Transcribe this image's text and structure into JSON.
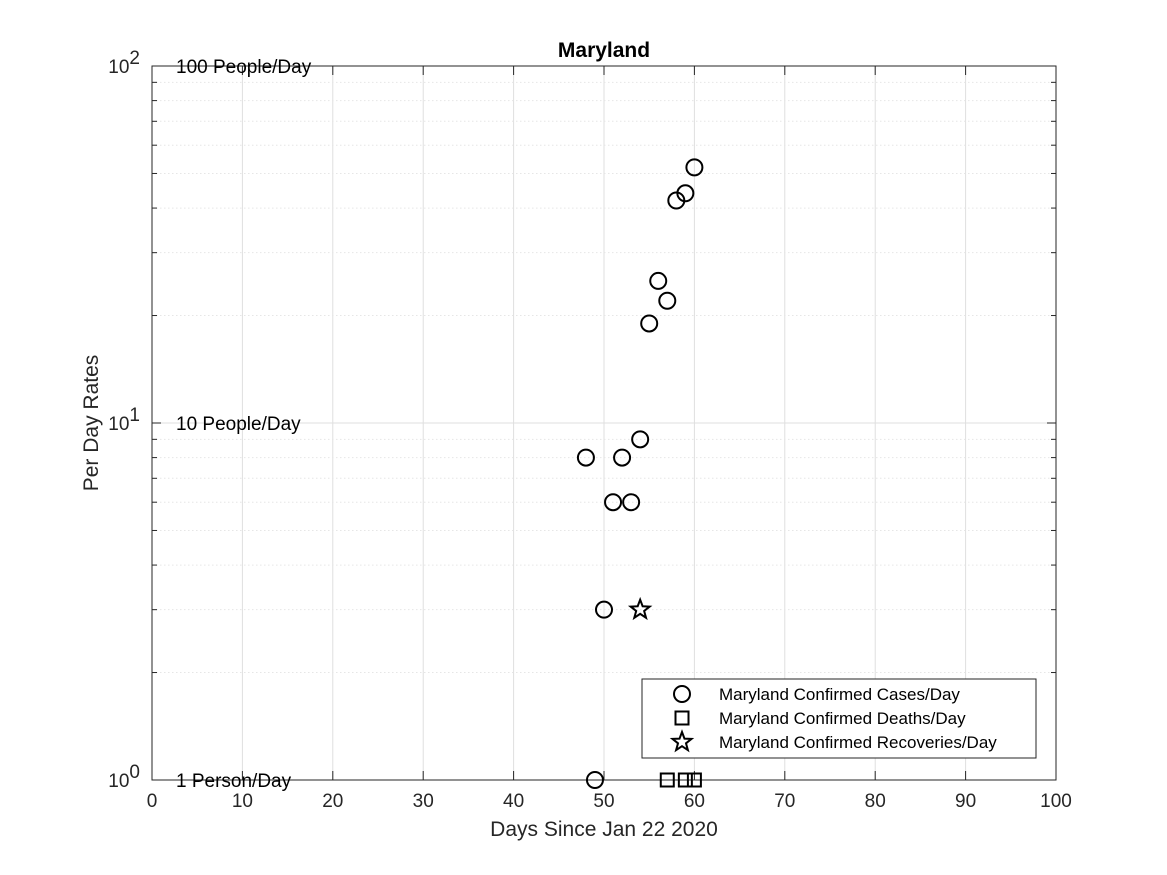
{
  "chart_data": {
    "type": "scatter",
    "title": "Maryland",
    "xlabel": "Days Since Jan 22 2020",
    "ylabel": "Per Day Rates",
    "xlim": [
      0,
      100
    ],
    "ylim": [
      1,
      100
    ],
    "yscale": "log",
    "grid": true,
    "x_ticks": [
      "0",
      "10",
      "20",
      "30",
      "40",
      "50",
      "60",
      "70",
      "80",
      "90",
      "100"
    ],
    "y_ticks": [
      {
        "value": 1,
        "base": "10",
        "exp": "0"
      },
      {
        "value": 10,
        "base": "10",
        "exp": "1"
      },
      {
        "value": 100,
        "base": "10",
        "exp": "2"
      }
    ],
    "annotations": [
      {
        "text": "100 People/Day",
        "y": 100
      },
      {
        "text": "10 People/Day",
        "y": 10
      },
      {
        "text": "1 Person/Day",
        "y": 1
      }
    ],
    "legend_position": "bottom-right",
    "series": [
      {
        "name": "Maryland Confirmed Cases/Day",
        "marker": "circle",
        "points": [
          {
            "x": 48,
            "y": 8
          },
          {
            "x": 49,
            "y": 1
          },
          {
            "x": 50,
            "y": 3
          },
          {
            "x": 51,
            "y": 6
          },
          {
            "x": 52,
            "y": 8
          },
          {
            "x": 53,
            "y": 6
          },
          {
            "x": 54,
            "y": 9
          },
          {
            "x": 55,
            "y": 19
          },
          {
            "x": 56,
            "y": 25
          },
          {
            "x": 57,
            "y": 22
          },
          {
            "x": 58,
            "y": 42
          },
          {
            "x": 59,
            "y": 44
          },
          {
            "x": 60,
            "y": 52
          }
        ]
      },
      {
        "name": "Maryland Confirmed Deaths/Day",
        "marker": "square",
        "points": [
          {
            "x": 57,
            "y": 1
          },
          {
            "x": 59,
            "y": 1
          },
          {
            "x": 60,
            "y": 1
          }
        ]
      },
      {
        "name": "Maryland Confirmed Recoveries/Day",
        "marker": "star",
        "points": [
          {
            "x": 54,
            "y": 3
          }
        ]
      }
    ]
  }
}
